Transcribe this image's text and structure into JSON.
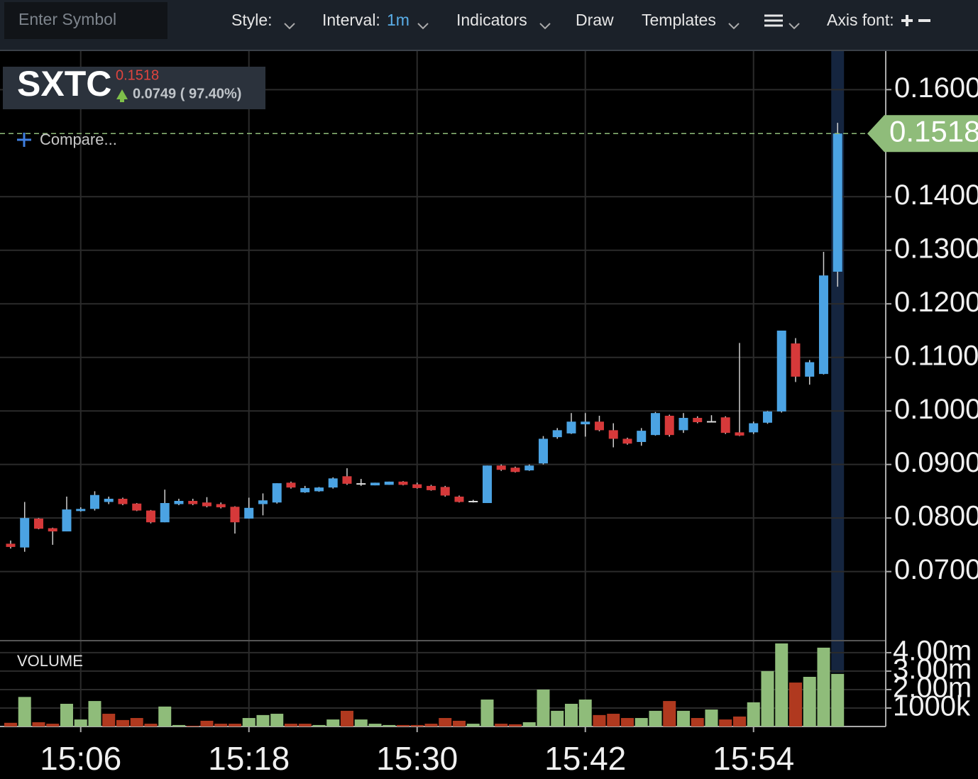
{
  "toolbar": {
    "symbol_placeholder": "Enter Symbol",
    "style": "Style:",
    "interval": "Interval:",
    "interval_value": "1m",
    "indicators": "Indicators",
    "draw": "Draw",
    "templates": "Templates",
    "axis_font": "Axis font:"
  },
  "header": {
    "symbol": "SXTC",
    "price": 0.1518,
    "change": "0.0749 ( 97.40%)",
    "compare": "Compare..."
  },
  "chart_data": {
    "type": "candlestick",
    "x": [
      "15:01",
      "15:02",
      "15:03",
      "15:04",
      "15:05",
      "15:06",
      "15:07",
      "15:08",
      "15:09",
      "15:10",
      "15:11",
      "15:12",
      "15:13",
      "15:14",
      "15:15",
      "15:16",
      "15:17",
      "15:18",
      "15:19",
      "15:20",
      "15:21",
      "15:22",
      "15:23",
      "15:24",
      "15:25",
      "15:26",
      "15:27",
      "15:28",
      "15:29",
      "15:30",
      "15:31",
      "15:32",
      "15:33",
      "15:34",
      "15:35",
      "15:36",
      "15:37",
      "15:38",
      "15:39",
      "15:40",
      "15:41",
      "15:42",
      "15:43",
      "15:44",
      "15:45",
      "15:46",
      "15:47",
      "15:48",
      "15:49",
      "15:50",
      "15:51",
      "15:52",
      "15:53",
      "15:54",
      "15:55",
      "15:56",
      "15:57",
      "15:58",
      "15:59",
      "16:00"
    ],
    "open": [
      0.0752,
      0.0745,
      0.0799,
      0.0781,
      0.0775,
      0.0813,
      0.0817,
      0.083,
      0.0836,
      0.0827,
      0.0814,
      0.0792,
      0.0826,
      0.0832,
      0.0829,
      0.0826,
      0.0821,
      0.0799,
      0.0826,
      0.0829,
      0.0866,
      0.0848,
      0.085,
      0.0857,
      0.0878,
      0.0865,
      0.0861,
      0.0862,
      0.0868,
      0.0863,
      0.086,
      0.0858,
      0.084,
      0.0832,
      0.0828,
      0.0898,
      0.0894,
      0.0889,
      0.0902,
      0.0951,
      0.0958,
      0.0975,
      0.098,
      0.0964,
      0.0948,
      0.0942,
      0.0955,
      0.0991,
      0.0964,
      0.0987,
      0.0981,
      0.0988,
      0.096,
      0.096,
      0.0978,
      0.0999,
      0.1126,
      0.1064,
      0.1069,
      0.126
    ],
    "high": [
      0.0758,
      0.083,
      0.08,
      0.0782,
      0.084,
      0.082,
      0.085,
      0.084,
      0.0838,
      0.0828,
      0.0815,
      0.0853,
      0.0836,
      0.0836,
      0.0839,
      0.0829,
      0.0822,
      0.0838,
      0.0846,
      0.0865,
      0.0868,
      0.086,
      0.0858,
      0.0876,
      0.0893,
      0.0873,
      0.0866,
      0.0868,
      0.0869,
      0.0866,
      0.0862,
      0.086,
      0.0842,
      0.0834,
      0.0898,
      0.09,
      0.0896,
      0.09,
      0.0953,
      0.0968,
      0.0996,
      0.0996,
      0.0991,
      0.0977,
      0.095,
      0.0968,
      0.0998,
      0.0993,
      0.0996,
      0.099,
      0.0992,
      0.099,
      0.1127,
      0.098,
      0.1,
      0.115,
      0.1136,
      0.1095,
      0.1297,
      0.1538
    ],
    "low": [
      0.0743,
      0.0737,
      0.0779,
      0.075,
      0.0775,
      0.0812,
      0.0814,
      0.0826,
      0.0824,
      0.0813,
      0.079,
      0.0792,
      0.0824,
      0.0824,
      0.082,
      0.0818,
      0.0771,
      0.0799,
      0.0805,
      0.0827,
      0.0855,
      0.0847,
      0.0849,
      0.0855,
      0.0862,
      0.086,
      0.0861,
      0.0862,
      0.0861,
      0.0855,
      0.0851,
      0.084,
      0.0829,
      0.0829,
      0.0828,
      0.0888,
      0.0885,
      0.0888,
      0.09,
      0.0948,
      0.0957,
      0.0952,
      0.0962,
      0.0932,
      0.0937,
      0.0935,
      0.0954,
      0.0952,
      0.0959,
      0.0977,
      0.0979,
      0.0957,
      0.0953,
      0.0957,
      0.0976,
      0.0997,
      0.1054,
      0.1049,
      0.1068,
      0.1232
    ],
    "close": [
      0.0746,
      0.08,
      0.078,
      0.0775,
      0.0816,
      0.0817,
      0.0843,
      0.0836,
      0.0826,
      0.0814,
      0.0792,
      0.0828,
      0.0832,
      0.0826,
      0.0822,
      0.082,
      0.0792,
      0.0819,
      0.0833,
      0.0865,
      0.0857,
      0.0856,
      0.0857,
      0.0874,
      0.0864,
      0.0865,
      0.0866,
      0.0868,
      0.0862,
      0.0856,
      0.0852,
      0.0842,
      0.083,
      0.0832,
      0.0898,
      0.089,
      0.0886,
      0.0898,
      0.0948,
      0.0964,
      0.098,
      0.098,
      0.0964,
      0.0948,
      0.0939,
      0.0963,
      0.0996,
      0.0955,
      0.0987,
      0.0979,
      0.0981,
      0.0959,
      0.0954,
      0.0977,
      0.0999,
      0.115,
      0.1064,
      0.1091,
      0.1253,
      0.1518
    ],
    "volume": [
      200000,
      1600000,
      230000,
      150000,
      1230000,
      380000,
      1380000,
      690000,
      350000,
      460000,
      150000,
      1080000,
      80000,
      40000,
      310000,
      150000,
      150000,
      460000,
      620000,
      690000,
      150000,
      150000,
      80000,
      380000,
      850000,
      380000,
      150000,
      80000,
      80000,
      80000,
      150000,
      460000,
      310000,
      150000,
      1460000,
      150000,
      120000,
      230000,
      2000000,
      850000,
      1230000,
      1460000,
      620000,
      690000,
      460000,
      460000,
      850000,
      1380000,
      850000,
      460000,
      920000,
      380000,
      540000,
      1310000,
      3000000,
      4500000,
      2380000,
      2690000,
      4270000,
      2850000
    ],
    "ylim": [
      0.0571,
      0.1672
    ],
    "yticks": [
      {
        "value": 0.07,
        "label": "0.0700"
      },
      {
        "value": 0.08,
        "label": "0.0800"
      },
      {
        "value": 0.09,
        "label": "0.0900"
      },
      {
        "value": 0.1,
        "label": "0.1000"
      },
      {
        "value": 0.11,
        "label": "0.1100"
      },
      {
        "value": 0.12,
        "label": "0.1200"
      },
      {
        "value": 0.13,
        "label": "0.1300"
      },
      {
        "value": 0.14,
        "label": "0.1400"
      },
      {
        "value": 0.16,
        "label": "0.1600"
      }
    ],
    "volume_label": "VOLUME",
    "volume_ylim": [
      0,
      4650000
    ],
    "volume_yticks": [
      {
        "value": 4000000,
        "label": "4.00m"
      },
      {
        "value": 3000000,
        "label": "3.00m"
      },
      {
        "value": 2000000,
        "label": "2.00m"
      },
      {
        "value": 1000000,
        "label": "1000k"
      }
    ],
    "xticks": [
      "15:06",
      "15:18",
      "15:30",
      "15:42",
      "15:54"
    ],
    "grid": true,
    "up_color": "#4ba3e3",
    "down_color": "#d6393a",
    "flat_color": "#dddddd",
    "volume_up_color": "#8fbc7a",
    "volume_down_color": "#b0391f",
    "last_price_color": "#8fbc7a"
  }
}
